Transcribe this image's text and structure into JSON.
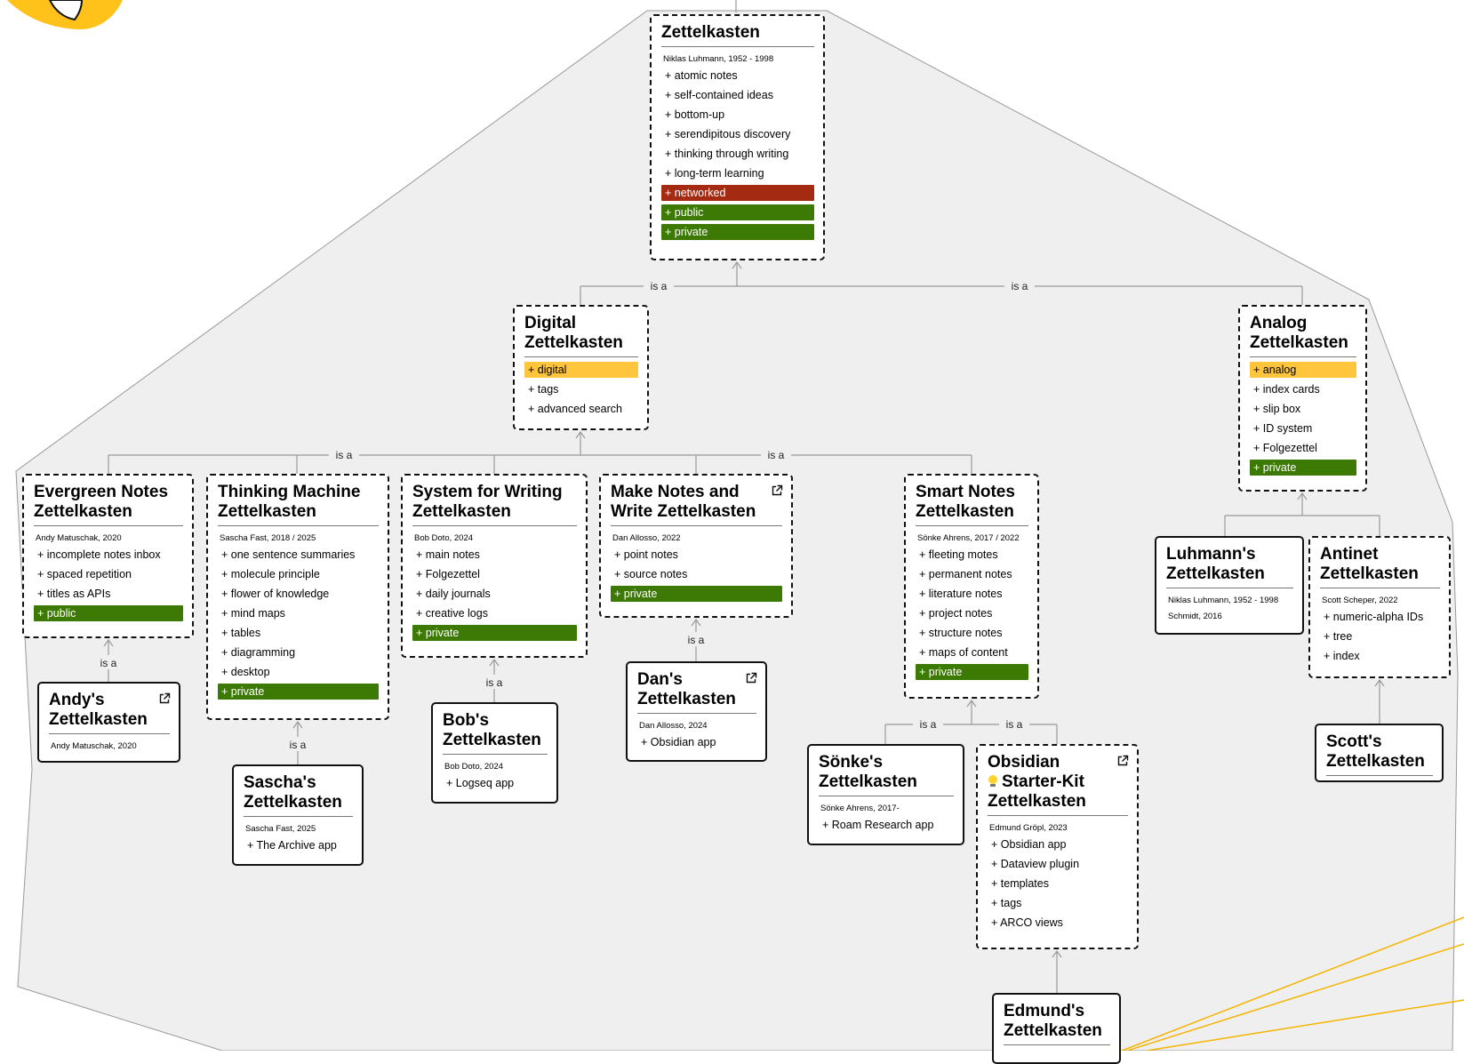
{
  "colors": {
    "region_fill": "#efefef",
    "region_stroke": "#999999",
    "edge": "#999999",
    "highlight_yellow": "#ffc53d",
    "highlight_red": "#a52a12",
    "highlight_green": "#3d7a05",
    "accent_line": "#f5b400"
  },
  "edge_label": "is a",
  "nodes": {
    "zettelkasten": {
      "title": [
        "Zettelkasten"
      ],
      "external_link": false,
      "meta": [
        "Niklas Luhmann, 1952 - 1998"
      ],
      "props": [
        {
          "text": "+ atomic notes",
          "hl": ""
        },
        {
          "text": "+ self-contained ideas",
          "hl": ""
        },
        {
          "text": "+ bottom-up",
          "hl": ""
        },
        {
          "text": "+ serendipitous discovery",
          "hl": ""
        },
        {
          "text": "+ thinking through writing",
          "hl": ""
        },
        {
          "text": "+ long-term learning",
          "hl": ""
        },
        {
          "text": "+ networked",
          "hl": "red"
        },
        {
          "text": "+ public",
          "hl": "green"
        },
        {
          "text": "+ private",
          "hl": "green"
        }
      ]
    },
    "digital": {
      "title": [
        "Digital",
        "Zettelkasten"
      ],
      "external_link": false,
      "meta": [],
      "props": [
        {
          "text": "+ digital",
          "hl": "yellow"
        },
        {
          "text": "+ tags",
          "hl": ""
        },
        {
          "text": "+ advanced search",
          "hl": ""
        }
      ]
    },
    "analog": {
      "title": [
        "Analog",
        "Zettelkasten"
      ],
      "external_link": false,
      "meta": [],
      "props": [
        {
          "text": "+ analog",
          "hl": "yellow"
        },
        {
          "text": "+ index cards",
          "hl": ""
        },
        {
          "text": "+ slip box",
          "hl": ""
        },
        {
          "text": "+ ID system",
          "hl": ""
        },
        {
          "text": "+ Folgezettel",
          "hl": ""
        },
        {
          "text": "+ private",
          "hl": "green"
        }
      ]
    },
    "evergreen": {
      "title": [
        "Evergreen Notes",
        "Zettelkasten"
      ],
      "external_link": false,
      "meta": [
        "Andy Matuschak, 2020"
      ],
      "props": [
        {
          "text": "+ incomplete notes inbox",
          "hl": ""
        },
        {
          "text": "+ spaced repetition",
          "hl": ""
        },
        {
          "text": "+ titles as APIs",
          "hl": ""
        },
        {
          "text": "+ public",
          "hl": "green"
        }
      ]
    },
    "thinking": {
      "title": [
        "Thinking Machine",
        "Zettelkasten"
      ],
      "external_link": false,
      "meta": [
        "Sascha Fast, 2018 / 2025"
      ],
      "props": [
        {
          "text": "+ one sentence summaries",
          "hl": ""
        },
        {
          "text": "+ molecule principle",
          "hl": ""
        },
        {
          "text": "+ flower of knowledge",
          "hl": ""
        },
        {
          "text": "+ mind maps",
          "hl": ""
        },
        {
          "text": "+ tables",
          "hl": ""
        },
        {
          "text": "+ diagramming",
          "hl": ""
        },
        {
          "text": "+ desktop",
          "hl": ""
        },
        {
          "text": "+ private",
          "hl": "green"
        }
      ]
    },
    "system": {
      "title": [
        "System for Writing",
        "Zettelkasten"
      ],
      "external_link": false,
      "meta": [
        "Bob Doto, 2024"
      ],
      "props": [
        {
          "text": "+ main notes",
          "hl": ""
        },
        {
          "text": "+ Folgezettel",
          "hl": ""
        },
        {
          "text": "+ daily journals",
          "hl": ""
        },
        {
          "text": "+ creative logs",
          "hl": ""
        },
        {
          "text": "+ private",
          "hl": "green"
        }
      ]
    },
    "makenotes": {
      "title": [
        "Make Notes and",
        "Write Zettelkasten"
      ],
      "external_link": true,
      "meta": [
        "Dan Allosso, 2022"
      ],
      "props": [
        {
          "text": "+ point notes",
          "hl": ""
        },
        {
          "text": "+ source notes",
          "hl": ""
        },
        {
          "text": "+ private",
          "hl": "green"
        }
      ]
    },
    "smart": {
      "title": [
        "Smart Notes",
        "Zettelkasten"
      ],
      "external_link": false,
      "meta": [
        "Sönke Ahrens, 2017 / 2022"
      ],
      "props": [
        {
          "text": "+ fleeting motes",
          "hl": ""
        },
        {
          "text": "+ permanent notes",
          "hl": ""
        },
        {
          "text": "+ literature notes",
          "hl": ""
        },
        {
          "text": "+ project notes",
          "hl": ""
        },
        {
          "text": "+ structure notes",
          "hl": ""
        },
        {
          "text": "+ maps of content",
          "hl": ""
        },
        {
          "text": "+ private",
          "hl": "green"
        }
      ]
    },
    "luhmann": {
      "title": [
        "Luhmann's",
        "Zettelkasten"
      ],
      "external_link": false,
      "meta": [
        "Niklas Luhmann, 1952 - 1998",
        "Schmidt, 2016"
      ],
      "props": []
    },
    "antinet": {
      "title": [
        "Antinet",
        "Zettelkasten"
      ],
      "external_link": false,
      "meta": [
        "Scott Scheper, 2022"
      ],
      "props": [
        {
          "text": "+ numeric-alpha IDs",
          "hl": ""
        },
        {
          "text": "+ tree",
          "hl": ""
        },
        {
          "text": "+ index",
          "hl": ""
        }
      ]
    },
    "andy": {
      "title": [
        "Andy's",
        "Zettelkasten"
      ],
      "external_link": true,
      "meta": [
        "Andy Matuschak, 2020"
      ],
      "props": []
    },
    "sascha": {
      "title": [
        "Sascha's",
        "Zettelkasten"
      ],
      "external_link": false,
      "meta": [
        "Sascha Fast, 2025"
      ],
      "props": [
        {
          "text": "+ The Archive app",
          "hl": ""
        }
      ]
    },
    "bob": {
      "title": [
        "Bob's",
        "Zettelkasten"
      ],
      "external_link": false,
      "meta": [
        "Bob Doto, 2024"
      ],
      "props": [
        {
          "text": "+ Logseq app",
          "hl": ""
        }
      ]
    },
    "dan": {
      "title": [
        "Dan's",
        "Zettelkasten"
      ],
      "external_link": true,
      "meta": [
        "Dan Allosso, 2024"
      ],
      "props": [
        {
          "text": "+ Obsidian app",
          "hl": ""
        }
      ]
    },
    "sonke": {
      "title": [
        "Sönke's",
        "Zettelkasten"
      ],
      "external_link": false,
      "meta": [
        "Sönke Ahrens, 2017-"
      ],
      "props": [
        {
          "text": "+ Roam Research app",
          "hl": ""
        }
      ]
    },
    "obsidian": {
      "title": [
        "Obsidian",
        "Starter-Kit",
        "Zettelkasten"
      ],
      "external_link": true,
      "bulb_icon": "lightbulb-icon",
      "meta": [
        "Edmund Gröpl, 2023"
      ],
      "props": [
        {
          "text": "+ Obsidian app",
          "hl": ""
        },
        {
          "text": "+ Dataview plugin",
          "hl": ""
        },
        {
          "text": "+ templates",
          "hl": ""
        },
        {
          "text": "+ tags",
          "hl": ""
        },
        {
          "text": "+ ARCO views",
          "hl": ""
        }
      ]
    },
    "scott": {
      "title": [
        "Scott's",
        "Zettelkasten"
      ],
      "external_link": false,
      "meta": [],
      "props": []
    },
    "edmund": {
      "title": [
        "Edmund's",
        "Zettelkasten"
      ],
      "external_link": false,
      "meta": [],
      "props": []
    }
  }
}
